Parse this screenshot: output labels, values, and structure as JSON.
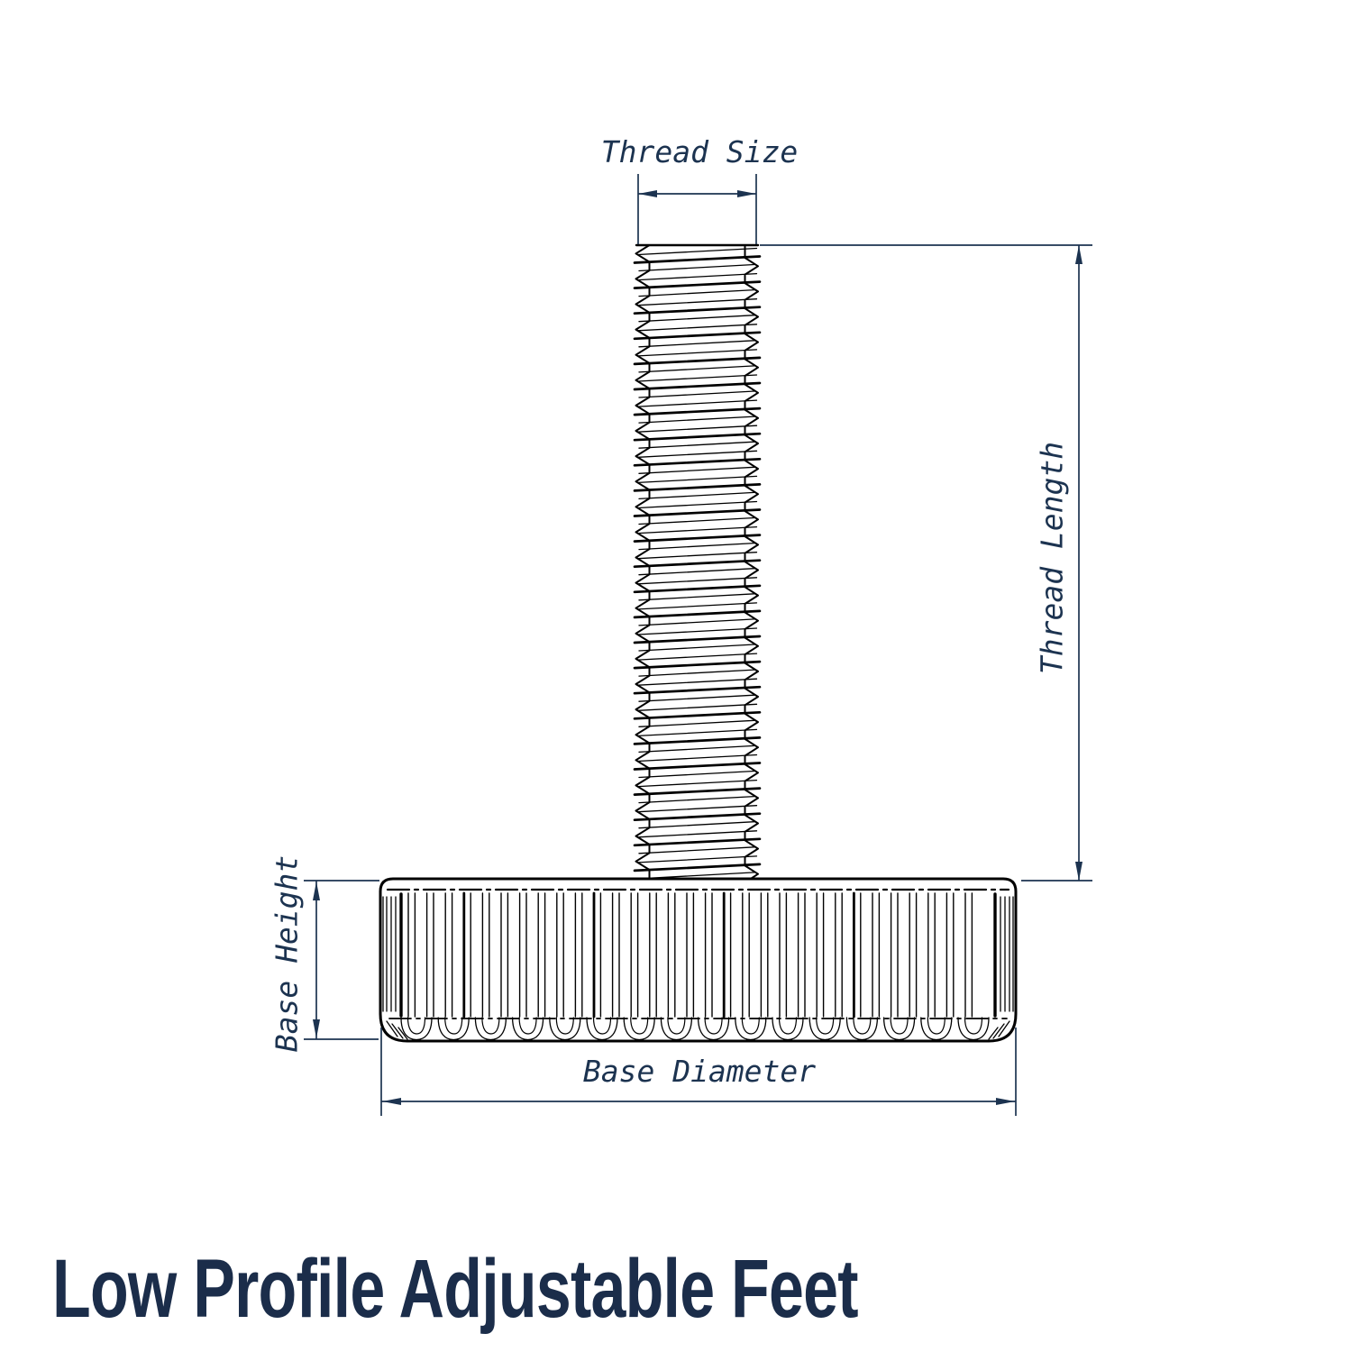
{
  "title": {
    "text": "Low Profile Adjustable Feet"
  },
  "diagram": {
    "type": "technical-drawing",
    "subject": "low-profile adjustable foot with threaded stud and knurled base",
    "labels": {
      "thread_size": "Thread Size",
      "thread_length": "Thread Length",
      "base_height": "Base Height",
      "base_diameter": "Base Diameter"
    },
    "colors": {
      "dimension_annotations": "#1c3350",
      "title_text": "#1b2d4a",
      "drawing_lines": "#000000",
      "background": "#ffffff"
    }
  }
}
